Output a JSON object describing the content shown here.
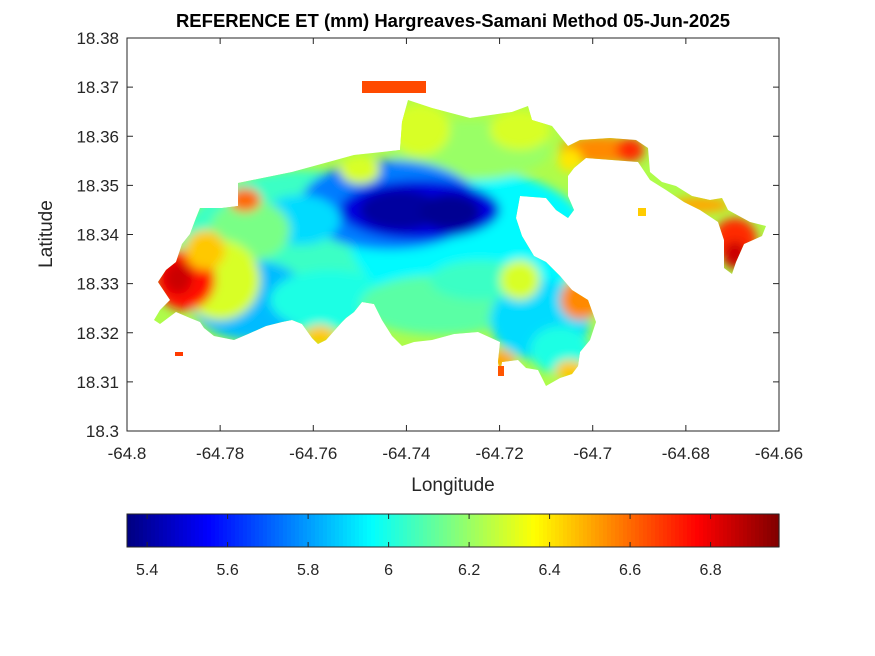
{
  "chart_data": {
    "type": "heatmap",
    "title": "REFERENCE ET (mm) Hargreaves-Samani Method  05-Jun-2025",
    "xlabel": "Longitude",
    "ylabel": "Latitude",
    "xlim": [
      -64.8,
      -64.66
    ],
    "ylim": [
      18.3,
      18.38
    ],
    "x_ticks": [
      "-64.8",
      "-64.78",
      "-64.76",
      "-64.74",
      "-64.72",
      "-64.7",
      "-64.68",
      "-64.66"
    ],
    "y_ticks": [
      "18.3",
      "18.31",
      "18.32",
      "18.33",
      "18.34",
      "18.35",
      "18.36",
      "18.37",
      "18.38"
    ],
    "colormap": "jet",
    "colorbar": {
      "range": [
        5.35,
        6.97
      ],
      "ticks": [
        "5.4",
        "5.6",
        "5.8",
        "6",
        "6.2",
        "6.4",
        "6.6",
        "6.8"
      ],
      "position": "bottom"
    },
    "grid": false
  }
}
